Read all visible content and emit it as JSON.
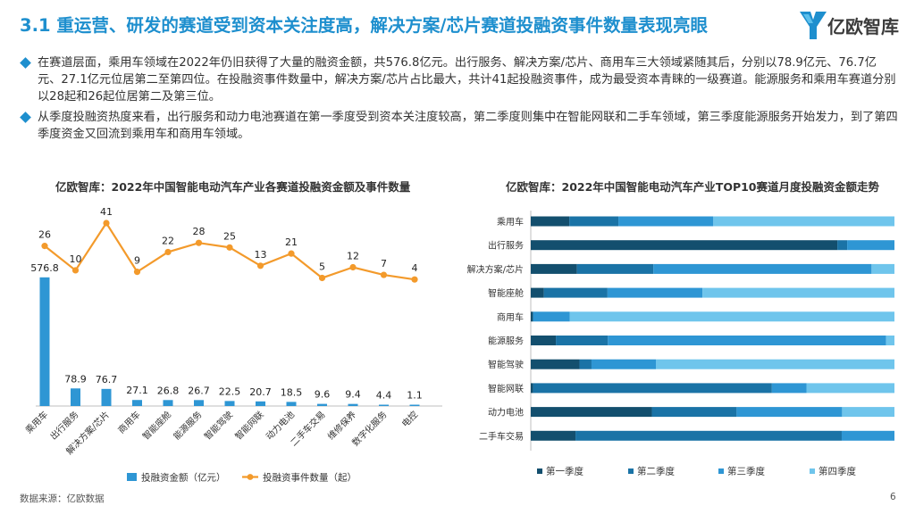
{
  "header": {
    "title": "3.1 重运营、研发的赛道受到资本关注度高，解决方案/芯片赛道投融资事件数量表现亮眼",
    "logo_text": "亿欧智库",
    "logo_color": "#1e8fce"
  },
  "bullets": [
    "在赛道层面，乘用车领域在2022年仍旧获得了大量的融资金额，共576.8亿元。出行服务、解决方案/芯片、商用车三大领域紧随其后，分别以78.9亿元、76.7亿元、27.1亿元位居第二至第四位。在投融资事件数量中，解决方案/芯片占比最大，共计41起投融资事件，成为最受资本青睐的一级赛道。能源服务和乘用车赛道分别以28起和26起位居第二及第三位。",
    "从季度投融资热度来看，出行服务和动力电池赛道在第一季度受到资本关注度较高，第二季度则集中在智能网联和二手车领域，第三季度能源服务开始发力，到了第四季度资金又回流到乘用车和商用车领域。"
  ],
  "footer": {
    "source": "数据来源：亿欧数据",
    "page": "6"
  },
  "chart_data": [
    {
      "type": "bar",
      "title": "亿欧智库：2022年中国智能电动汽车产业各赛道投融资金额及事件数量",
      "categories": [
        "乘用车",
        "出行服务",
        "解决方案/芯片",
        "商用车",
        "智能座舱",
        "能源服务",
        "智能驾驶",
        "智能网联",
        "动力电池",
        "二手车交易",
        "维修保养",
        "数字化服务",
        "电控"
      ],
      "series": [
        {
          "name": "投融资金额（亿元）",
          "type": "bar",
          "color": "#2e96d4",
          "values": [
            576.8,
            78.9,
            76.7,
            27.1,
            26.8,
            26.7,
            22.5,
            20.7,
            18.5,
            9.6,
            9.4,
            4.4,
            1.1
          ]
        },
        {
          "name": "投融资事件数量（起）",
          "type": "line",
          "color": "#f39a2b",
          "values": [
            26,
            10,
            41,
            9,
            22,
            28,
            25,
            13,
            21,
            5,
            12,
            7,
            4
          ]
        }
      ],
      "legend": "bottom"
    },
    {
      "type": "bar",
      "stacked": true,
      "orientation": "horizontal",
      "percent": true,
      "title": "亿欧智库：2022年中国智能电动汽车产业TOP10赛道月度投融资金额走势",
      "categories": [
        "乘用车",
        "出行服务",
        "解决方案/芯片",
        "智能座舱",
        "商用车",
        "能源服务",
        "智能驾驶",
        "智能网联",
        "动力电池",
        "二手车交易"
      ],
      "series": [
        {
          "name": "第一季度",
          "color": "#134f6e",
          "values": [
            0.106,
            0.843,
            0.127,
            0.036,
            0.006,
            0.069,
            0.134,
            0.006,
            0.333,
            0.123
          ]
        },
        {
          "name": "第二季度",
          "color": "#1a73a6",
          "values": [
            0.135,
            0.027,
            0.21,
            0.175,
            0.0,
            0.143,
            0.033,
            0.657,
            0.233,
            0.732
          ]
        },
        {
          "name": "第三季度",
          "color": "#2e96d4",
          "values": [
            0.261,
            0.13,
            0.6,
            0.261,
            0.101,
            0.765,
            0.177,
            0.095,
            0.29,
            0.145
          ]
        },
        {
          "name": "第四季度",
          "color": "#6fc5ec",
          "values": [
            0.498,
            0.0,
            0.063,
            0.528,
            0.893,
            0.023,
            0.656,
            0.242,
            0.144,
            0.0
          ]
        }
      ],
      "legend": "bottom"
    }
  ]
}
